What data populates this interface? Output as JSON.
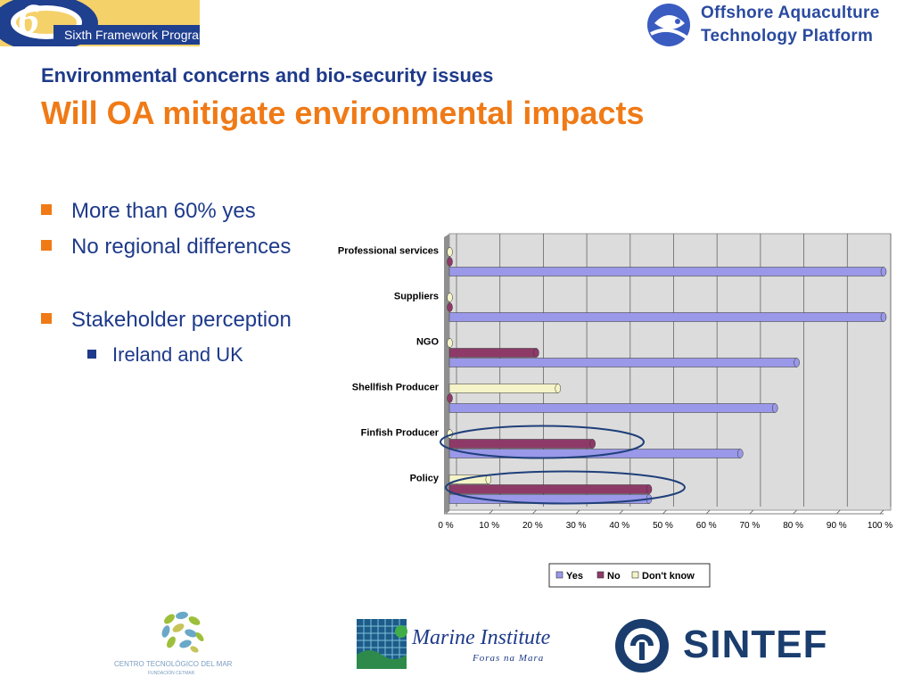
{
  "header": {
    "fp6_logo_text": "Sixth Framework Programme",
    "fp6_logo_number": "6",
    "oatp_logo_line1": "Offshore Aquaculture",
    "oatp_logo_line2": "Technology Platform"
  },
  "slide": {
    "subtitle": "Environmental concerns and bio-security issues",
    "title": "Will OA mitigate environmental impacts",
    "bullets": [
      "More than 60% yes",
      "No regional differences",
      "Stakeholder perception"
    ],
    "sub_bullets": [
      "Ireland and UK"
    ]
  },
  "colors": {
    "accent_orange": "#f07a16",
    "text_blue": "#1e3a8a",
    "yes": "#9a98e8",
    "no": "#8e3a68",
    "dont_know": "#f4f4c8",
    "highlight_ellipse": "#1f3f7a"
  },
  "footer": {
    "cetmar_name": "CENTRO TECNOLÓGICO DEL MAR",
    "cetmar_sub": "FUNDACIÓN CETMAR",
    "marine_name": "Marine Institute",
    "marine_sub": "Foras na Mara",
    "sintef_name": "SINTEF"
  },
  "chart_data": {
    "type": "bar",
    "orientation": "horizontal",
    "style": "3d-cylinder",
    "categories": [
      "Professional services",
      "Suppliers",
      "NGO",
      "Shellfish Producer",
      "Finfish Producer",
      "Policy"
    ],
    "series": [
      {
        "name": "Yes",
        "values": [
          100,
          100,
          80,
          75,
          67,
          46
        ]
      },
      {
        "name": "No",
        "values": [
          0,
          0,
          20,
          0,
          33,
          46
        ]
      },
      {
        "name": "Don't know",
        "values": [
          0,
          0,
          0,
          25,
          0,
          9
        ]
      }
    ],
    "xlim": [
      0,
      100
    ],
    "x_ticks": [
      "0 %",
      "10 %",
      "20 %",
      "30 %",
      "40 %",
      "50 %",
      "60 %",
      "70 %",
      "80 %",
      "90 %",
      "100 %"
    ],
    "grid": true,
    "legend": "bottom",
    "highlighted_categories": [
      "Finfish Producer",
      "Policy"
    ]
  }
}
